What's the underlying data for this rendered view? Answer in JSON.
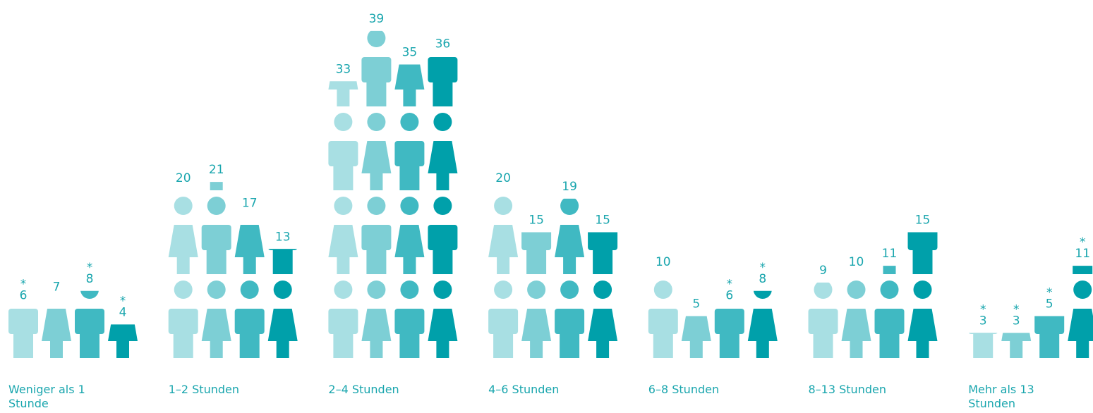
{
  "chart_data": {
    "type": "pictogram",
    "categories": [
      "Weniger als 1 Stunde",
      "1–2 Stunden",
      "2–4 Stunden",
      "4–6 Stunden",
      "6–8 Stunden",
      "8–13 Stunden",
      "Mehr als 13 Stunden"
    ],
    "series": [
      {
        "color": "#a8dfe3",
        "values": [
          6,
          20,
          33,
          20,
          10,
          9,
          3
        ],
        "notes": [
          "*",
          null,
          null,
          null,
          null,
          null,
          "*"
        ]
      },
      {
        "color": "#7dcfd5",
        "values": [
          7,
          21,
          39,
          15,
          5,
          10,
          3
        ],
        "notes": [
          null,
          null,
          null,
          null,
          null,
          null,
          "*"
        ]
      },
      {
        "color": "#40b9c2",
        "values": [
          8,
          17,
          35,
          19,
          6,
          11,
          5
        ],
        "notes": [
          "*",
          null,
          null,
          null,
          "*",
          null,
          "*"
        ]
      },
      {
        "color": "#00a0aa",
        "values": [
          4,
          13,
          36,
          15,
          8,
          15,
          11
        ],
        "notes": [
          "*",
          null,
          null,
          null,
          "*",
          null,
          "*"
        ]
      }
    ],
    "icon_unit": 10
  }
}
